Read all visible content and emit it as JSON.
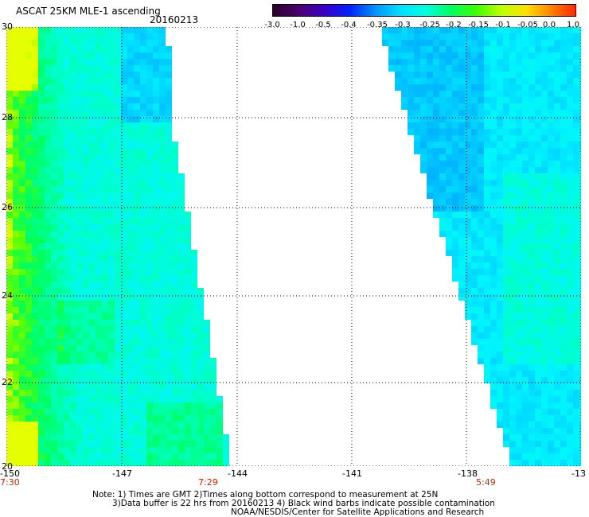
{
  "header": {
    "title": "ASCAT 25KM MLE-1 ascending",
    "date": "20160213"
  },
  "colorbar": {
    "labels": [
      "-3.0",
      "-1.0",
      "-0.5",
      "-0.4",
      "-0.35",
      "-0.3",
      "-0.25",
      "-0.2",
      "-0.15",
      "-0.1",
      "-0.05",
      "0.0",
      "1.0"
    ],
    "colors": [
      "#2a0030",
      "#4b006e",
      "#3a00c8",
      "#0020ff",
      "#0090ff",
      "#00e0ff",
      "#00ffe0",
      "#00ff60",
      "#40ff00",
      "#c0ff00",
      "#ffe000",
      "#ff8000",
      "#ff2000"
    ]
  },
  "axes": {
    "y_labels": [
      "30",
      "28",
      "26",
      "24",
      "22",
      "20"
    ],
    "x_labels": [
      "-150",
      "-147",
      "-144",
      "-141",
      "-138",
      "-13"
    ]
  },
  "times": {
    "left": "7:30",
    "mid": "7:29",
    "right": "5:49"
  },
  "notes": {
    "line1": "Note: 1) Times are GMT 2)Times along bottom correspond to measurement at 25N",
    "line2": "3)Data buffer is 22 hrs from 20160213 4) Black wind barbs indicate possible contamination",
    "line3": "NOAA/NESDIS/Center for Satellite Applications and Research"
  },
  "map": {
    "lat_range": [
      20,
      30
    ],
    "lon_range": [
      -150,
      -131
    ],
    "grid": "dotted every 3 deg lon, 2 deg lat",
    "swaths": [
      {
        "name": "left",
        "dominant_color": "#00ffff"
      },
      {
        "name": "right",
        "dominant_color": "#00ffff"
      }
    ]
  }
}
